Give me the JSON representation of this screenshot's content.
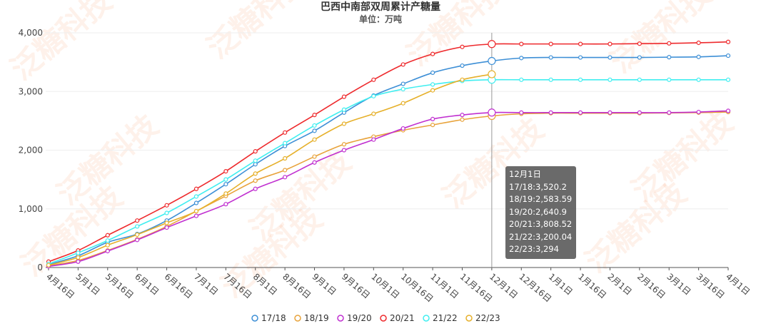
{
  "chart_data": {
    "type": "line",
    "title": "巴西中南部双周累计产糖量",
    "subtitle": "单位：万吨",
    "watermark": "泛糖科技",
    "categories": [
      "4月16日",
      "5月1日",
      "5月16日",
      "6月1日",
      "6月16日",
      "7月1日",
      "7月16日",
      "8月1日",
      "8月16日",
      "9月1日",
      "9月16日",
      "10月1日",
      "10月16日",
      "11月1日",
      "11月16日",
      "12月1日",
      "12月16日",
      "1月1日",
      "1月16日",
      "2月1日",
      "2月16日",
      "3月1日",
      "3月16日",
      "4月1日"
    ],
    "series": [
      {
        "name": "17/18",
        "color": "#3d8fd6",
        "values": [
          50,
          200,
          430,
          570,
          800,
          1100,
          1420,
          1760,
          2070,
          2330,
          2640,
          2930,
          3130,
          3320,
          3440,
          3520.2,
          3570,
          3580,
          3580,
          3580,
          3580,
          3585,
          3590,
          3610
        ]
      },
      {
        "name": "18/19",
        "color": "#e8a33b",
        "values": [
          30,
          120,
          290,
          480,
          700,
          960,
          1220,
          1480,
          1660,
          1890,
          2100,
          2230,
          2340,
          2430,
          2520,
          2583.59,
          2620,
          2630,
          2630,
          2630,
          2630,
          2635,
          2640,
          2650
        ]
      },
      {
        "name": "19/20",
        "color": "#c02fd0",
        "values": [
          20,
          100,
          280,
          470,
          680,
          880,
          1080,
          1340,
          1540,
          1790,
          2000,
          2180,
          2370,
          2530,
          2600,
          2640.9,
          2640,
          2640,
          2640,
          2640,
          2640,
          2640,
          2650,
          2670
        ]
      },
      {
        "name": "20/21",
        "color": "#ee2a2d",
        "values": [
          100,
          290,
          550,
          800,
          1060,
          1340,
          1640,
          1980,
          2300,
          2600,
          2910,
          3200,
          3460,
          3640,
          3760,
          3808.52,
          3810,
          3810,
          3810,
          3810,
          3815,
          3820,
          3830,
          3845
        ]
      },
      {
        "name": "21/22",
        "color": "#40eef0",
        "values": [
          60,
          250,
          460,
          700,
          930,
          1210,
          1500,
          1820,
          2120,
          2420,
          2690,
          2920,
          3040,
          3120,
          3180,
          3200.04,
          3200,
          3200,
          3200,
          3200,
          3200,
          3200,
          3200,
          3200
        ]
      },
      {
        "name": "22/23",
        "color": "#e6b02a",
        "values": [
          40,
          170,
          380,
          560,
          760,
          960,
          1260,
          1600,
          1860,
          2180,
          2450,
          2620,
          2800,
          3020,
          3200,
          3294,
          null,
          null,
          null,
          null,
          null,
          null,
          null,
          null
        ]
      }
    ],
    "ylim": [
      0,
      4000
    ],
    "yticks": [
      0,
      {
        "value": 1000,
        "label": "1,000"
      },
      {
        "value": 2000,
        "label": "2,000"
      },
      {
        "value": 3000,
        "label": "3,000"
      },
      {
        "value": 4000,
        "label": "4,000"
      }
    ],
    "grid": true,
    "legend": "bottom",
    "tooltip": {
      "index": 15,
      "title": "12月1日",
      "lines": [
        "17/18:3,520.2",
        "18/19:2,583.59",
        "19/20:2,640.9",
        "20/21:3,808.52",
        "21/22:3,200.04",
        "22/23:3,294"
      ]
    }
  }
}
